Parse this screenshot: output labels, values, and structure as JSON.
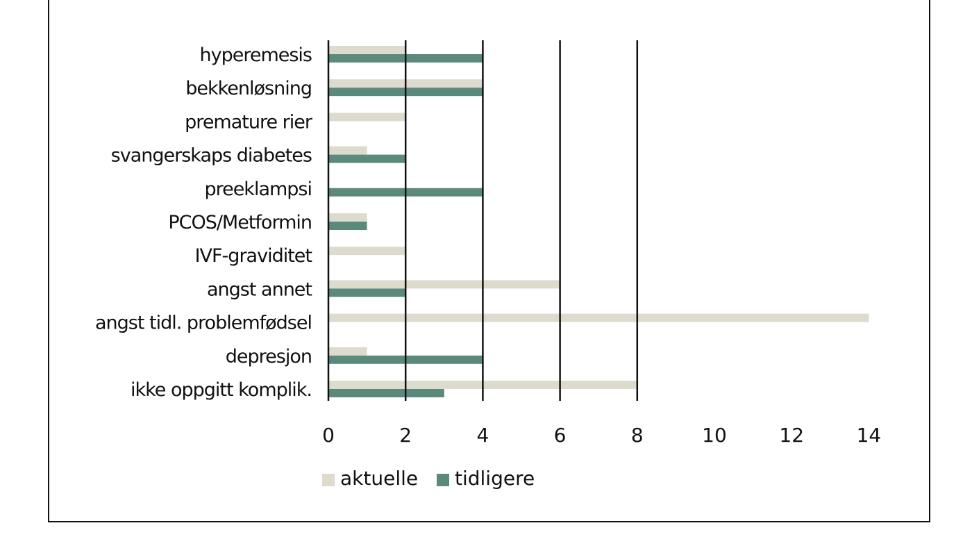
{
  "chart_data": {
    "type": "bar",
    "orientation": "horizontal",
    "title": "",
    "xlabel": "",
    "ylabel": "",
    "categories": [
      "hyperemesis",
      "bekkenløsning",
      "premature rier",
      "svangerskaps diabetes",
      "preeklampsi",
      "PCOS/Metformin",
      "IVF-graviditet",
      "angst annet",
      "angst tidl. problemfødsel",
      "depresjon",
      "ikke oppgitt komplik."
    ],
    "series": [
      {
        "name": "aktuelle",
        "color": "#dddbcd",
        "values": [
          2,
          4,
          2,
          1,
          0,
          1,
          2,
          6,
          14,
          1,
          8
        ]
      },
      {
        "name": "tidligere",
        "color": "#5b8a7c",
        "values": [
          4,
          4,
          0,
          2,
          4,
          1,
          0,
          2,
          0,
          4,
          3
        ]
      }
    ],
    "x_ticks": [
      0,
      2,
      4,
      6,
      8,
      10,
      12,
      14
    ],
    "xlim": [
      0,
      14
    ],
    "gridlines": [
      0,
      2,
      4,
      6,
      8
    ],
    "legend_position": "bottom"
  }
}
